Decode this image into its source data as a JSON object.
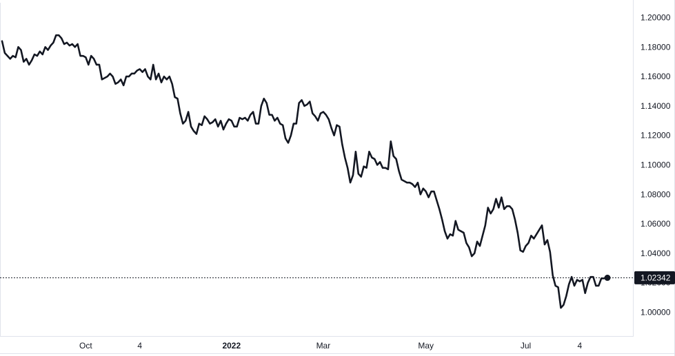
{
  "chart_data": {
    "type": "line",
    "title": "",
    "xlabel": "",
    "ylabel": "",
    "ylim": [
      0.98,
      1.205
    ],
    "y_ticks": [
      "1.20000",
      "1.18000",
      "1.16000",
      "1.14000",
      "1.12000",
      "1.10000",
      "1.08000",
      "1.06000",
      "1.04000",
      "1.02000",
      "1.00000"
    ],
    "x_ticks": [
      {
        "label": "Oct",
        "bold": false,
        "index": 31
      },
      {
        "label": "4",
        "bold": false,
        "index": 51
      },
      {
        "label": "2022",
        "bold": true,
        "index": 85
      },
      {
        "label": "Mar",
        "bold": false,
        "index": 119
      },
      {
        "label": "May",
        "bold": false,
        "index": 157
      },
      {
        "label": "Jul",
        "bold": false,
        "index": 194
      },
      {
        "label": "4",
        "bold": false,
        "index": 214
      }
    ],
    "last_value": {
      "label": "1.02342",
      "value": 1.02342
    },
    "grid": false,
    "legend": "none",
    "colors": {
      "line": "#131722",
      "background": "#ffffff",
      "axis_text": "#131722",
      "last_label_bg": "#131722"
    },
    "values": [
      1.184,
      1.176,
      1.174,
      1.172,
      1.174,
      1.173,
      1.18,
      1.178,
      1.17,
      1.172,
      1.168,
      1.171,
      1.175,
      1.174,
      1.177,
      1.175,
      1.18,
      1.178,
      1.181,
      1.183,
      1.188,
      1.188,
      1.186,
      1.182,
      1.183,
      1.181,
      1.182,
      1.18,
      1.182,
      1.174,
      1.174,
      1.173,
      1.168,
      1.174,
      1.172,
      1.168,
      1.168,
      1.158,
      1.159,
      1.16,
      1.162,
      1.16,
      1.155,
      1.156,
      1.158,
      1.154,
      1.16,
      1.16,
      1.162,
      1.162,
      1.164,
      1.165,
      1.163,
      1.165,
      1.16,
      1.158,
      1.168,
      1.158,
      1.162,
      1.156,
      1.16,
      1.158,
      1.16,
      1.155,
      1.146,
      1.145,
      1.135,
      1.128,
      1.13,
      1.136,
      1.126,
      1.123,
      1.121,
      1.128,
      1.127,
      1.133,
      1.131,
      1.128,
      1.129,
      1.131,
      1.126,
      1.13,
      1.124,
      1.128,
      1.131,
      1.13,
      1.126,
      1.126,
      1.132,
      1.131,
      1.132,
      1.13,
      1.134,
      1.136,
      1.128,
      1.128,
      1.14,
      1.145,
      1.142,
      1.134,
      1.134,
      1.13,
      1.132,
      1.128,
      1.127,
      1.118,
      1.115,
      1.12,
      1.128,
      1.128,
      1.142,
      1.144,
      1.14,
      1.141,
      1.143,
      1.135,
      1.133,
      1.13,
      1.135,
      1.136,
      1.134,
      1.131,
      1.125,
      1.12,
      1.127,
      1.126,
      1.114,
      1.105,
      1.098,
      1.088,
      1.093,
      1.109,
      1.094,
      1.092,
      1.099,
      1.098,
      1.109,
      1.105,
      1.104,
      1.1,
      1.102,
      1.098,
      1.098,
      1.097,
      1.116,
      1.106,
      1.104,
      1.096,
      1.09,
      1.089,
      1.088,
      1.088,
      1.087,
      1.085,
      1.088,
      1.08,
      1.084,
      1.082,
      1.078,
      1.082,
      1.082,
      1.076,
      1.07,
      1.063,
      1.055,
      1.05,
      1.053,
      1.052,
      1.062,
      1.056,
      1.055,
      1.054,
      1.047,
      1.044,
      1.038,
      1.04,
      1.048,
      1.045,
      1.052,
      1.059,
      1.071,
      1.067,
      1.07,
      1.077,
      1.071,
      1.078,
      1.07,
      1.072,
      1.072,
      1.07,
      1.063,
      1.054,
      1.042,
      1.041,
      1.045,
      1.047,
      1.052,
      1.05,
      1.053,
      1.056,
      1.059,
      1.046,
      1.049,
      1.041,
      1.025,
      1.018,
      1.017,
      1.003,
      1.005,
      1.011,
      1.019,
      1.024,
      1.018,
      1.022,
      1.021,
      1.022,
      1.013,
      1.02,
      1.024,
      1.024,
      1.018,
      1.018,
      1.023,
      1.023,
      1.024
    ]
  }
}
